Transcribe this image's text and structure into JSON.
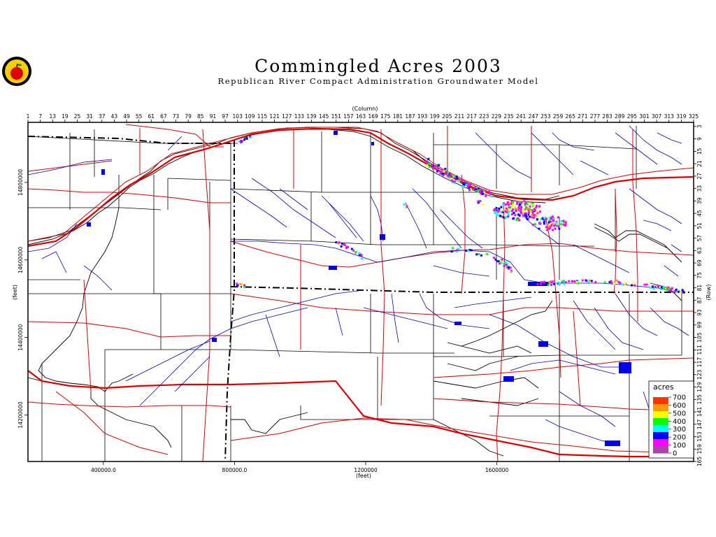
{
  "title": "Commingled Acres 2003",
  "subtitle": "Republican River Compact Administration Groundwater Model",
  "top_axis": {
    "label": "(Column)",
    "ticks": [
      "1",
      "7",
      "13",
      "19",
      "25",
      "31",
      "37",
      "43",
      "49",
      "55",
      "61",
      "67",
      "73",
      "79",
      "85",
      "91",
      "97",
      "103",
      "109",
      "115",
      "121",
      "127",
      "133",
      "139",
      "145",
      "151",
      "157",
      "163",
      "169",
      "175",
      "181",
      "187",
      "193",
      "199",
      "205",
      "211",
      "217",
      "223",
      "229",
      "235",
      "241",
      "247",
      "253",
      "259",
      "265",
      "271",
      "277",
      "283",
      "289",
      "295",
      "301",
      "307",
      "313",
      "319",
      "325"
    ]
  },
  "right_axis": {
    "label": "(Row)",
    "ticks": [
      "3",
      "9",
      "15",
      "21",
      "27",
      "33",
      "39",
      "45",
      "51",
      "57",
      "63",
      "69",
      "75",
      "81",
      "87",
      "93",
      "99",
      "105",
      "111",
      "117",
      "123",
      "129",
      "135",
      "141",
      "147",
      "153",
      "159",
      "165"
    ]
  },
  "bottom_axis": {
    "label": "(feet)",
    "ticks": [
      {
        "value": 400000,
        "label": "400000.0"
      },
      {
        "value": 800000,
        "label": "800000.0"
      },
      {
        "value": 1200000,
        "label": "1200000"
      },
      {
        "value": 1600000,
        "label": "1600000"
      }
    ]
  },
  "left_axis": {
    "label": "(feet)",
    "ticks": [
      {
        "value": 14800000,
        "label": "14800000"
      },
      {
        "value": 14600000,
        "label": "14600000"
      },
      {
        "value": 14400000,
        "label": "14400000"
      },
      {
        "value": 14200000,
        "label": "14200000"
      }
    ]
  },
  "legend": {
    "title": "acres",
    "levels": [
      "700",
      "600",
      "500",
      "400",
      "300",
      "200",
      "100",
      "0"
    ],
    "colors": [
      "#ff3300",
      "#ff9900",
      "#ffff00",
      "#00ff00",
      "#00ffff",
      "#0000ff",
      "#ff00ff",
      "#aa44aa"
    ]
  },
  "colors": {
    "roads": "#e00000",
    "streams": "#0000cc",
    "counties": "#000000",
    "frame": "#000000"
  },
  "logo_icon": "apple-seal-icon"
}
